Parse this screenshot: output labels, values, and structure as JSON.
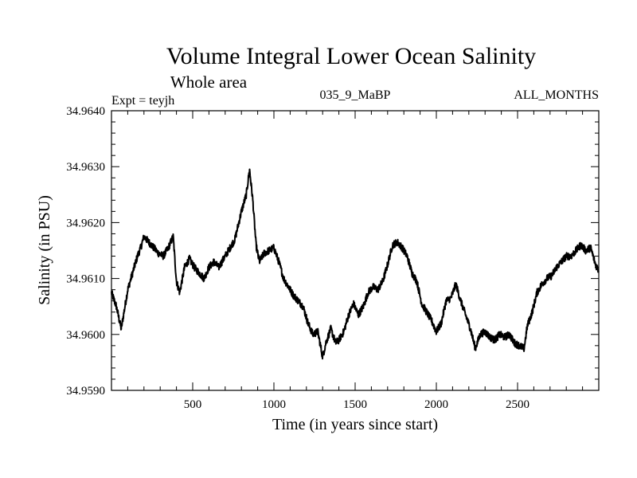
{
  "chart_data": {
    "type": "line",
    "title": "Volume Integral Lower Ocean Salinity",
    "subtitle": "Whole area",
    "experiment_label": "Expt = teyjh",
    "run_label": "035_9_MaBP",
    "period_label": "ALL_MONTHS",
    "xlabel": "Time (in years since start)",
    "ylabel": "Salinity (in PSU)",
    "xlim": [
      0,
      3000
    ],
    "ylim": [
      34.959,
      34.964
    ],
    "xticks": [
      500,
      1000,
      1500,
      2000,
      2500
    ],
    "xtick_labels": [
      "500",
      "1000",
      "1500",
      "2000",
      "2500"
    ],
    "yticks": [
      34.959,
      34.96,
      34.961,
      34.962,
      34.963,
      34.964
    ],
    "ytick_labels": [
      "34.9590",
      "34.9600",
      "34.9610",
      "34.9620",
      "34.9630",
      "34.9640"
    ],
    "grid": false,
    "line_color": "#000000",
    "series": [
      {
        "name": "Salinity",
        "x": [
          0,
          30,
          60,
          80,
          100,
          130,
          160,
          180,
          200,
          230,
          260,
          290,
          320,
          350,
          380,
          400,
          420,
          450,
          480,
          510,
          540,
          570,
          600,
          630,
          660,
          690,
          720,
          760,
          800,
          830,
          850,
          870,
          890,
          910,
          940,
          970,
          1000,
          1030,
          1060,
          1090,
          1120,
          1150,
          1180,
          1210,
          1240,
          1270,
          1300,
          1320,
          1350,
          1380,
          1400,
          1430,
          1460,
          1490,
          1520,
          1550,
          1580,
          1610,
          1640,
          1670,
          1700,
          1730,
          1760,
          1790,
          1820,
          1850,
          1880,
          1910,
          1940,
          1970,
          2000,
          2030,
          2060,
          2090,
          2120,
          2150,
          2180,
          2210,
          2240,
          2270,
          2300,
          2330,
          2360,
          2390,
          2420,
          2450,
          2480,
          2510,
          2540,
          2560,
          2590,
          2620,
          2650,
          2680,
          2710,
          2740,
          2770,
          2800,
          2830,
          2860,
          2890,
          2920,
          2950,
          2980,
          2999
        ],
        "values": [
          34.96075,
          34.9605,
          34.9601,
          34.96045,
          34.9608,
          34.9611,
          34.9614,
          34.96155,
          34.96175,
          34.96165,
          34.96155,
          34.96145,
          34.9614,
          34.96155,
          34.96175,
          34.96095,
          34.96075,
          34.9612,
          34.96135,
          34.9612,
          34.9611,
          34.961,
          34.9612,
          34.9613,
          34.9612,
          34.96135,
          34.9615,
          34.9617,
          34.9622,
          34.9625,
          34.96295,
          34.9624,
          34.9616,
          34.9613,
          34.96145,
          34.9615,
          34.96155,
          34.9613,
          34.961,
          34.96085,
          34.9607,
          34.9606,
          34.9605,
          34.9602,
          34.96,
          34.96005,
          34.9596,
          34.95985,
          34.9601,
          34.95985,
          34.9599,
          34.96005,
          34.96035,
          34.96055,
          34.96035,
          34.9605,
          34.96075,
          34.96085,
          34.9608,
          34.96095,
          34.96125,
          34.9616,
          34.96165,
          34.96155,
          34.9614,
          34.9611,
          34.96095,
          34.96055,
          34.9604,
          34.96025,
          34.96005,
          34.9602,
          34.9606,
          34.96065,
          34.9609,
          34.9606,
          34.96035,
          34.9601,
          34.95975,
          34.96,
          34.96005,
          34.95995,
          34.9599,
          34.96,
          34.95995,
          34.96,
          34.95985,
          34.9598,
          34.95975,
          34.96015,
          34.9604,
          34.96075,
          34.9609,
          34.961,
          34.96105,
          34.9612,
          34.9613,
          34.9614,
          34.9614,
          34.9615,
          34.9616,
          34.9615,
          34.96155,
          34.96125,
          34.96115
        ]
      }
    ]
  }
}
